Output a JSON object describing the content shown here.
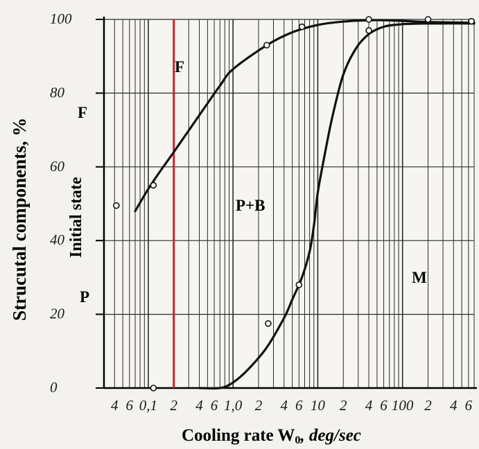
{
  "chart_data": {
    "type": "line",
    "xlabel_main": "Cooling rate W",
    "xlabel_sub": "0",
    "xlabel_unit": ", deg/sec",
    "ylabel": "Strucutal components, %",
    "ylim": [
      0,
      100
    ],
    "xscale": "log",
    "xlim": [
      0.03,
      700
    ],
    "y_ticks": [
      {
        "value": 0,
        "label": "0"
      },
      {
        "value": 20,
        "label": "20"
      },
      {
        "value": 40,
        "label": "40"
      },
      {
        "value": 60,
        "label": "60"
      },
      {
        "value": 80,
        "label": "80"
      },
      {
        "value": 100,
        "label": "100"
      }
    ],
    "x_ticks": [
      {
        "value": 0.04,
        "label": "4"
      },
      {
        "value": 0.06,
        "label": "6"
      },
      {
        "value": 0.1,
        "label": "0,1"
      },
      {
        "value": 0.2,
        "label": "2"
      },
      {
        "value": 0.4,
        "label": "4"
      },
      {
        "value": 0.6,
        "label": "6"
      },
      {
        "value": 1.0,
        "label": "1,0"
      },
      {
        "value": 2,
        "label": "2"
      },
      {
        "value": 4,
        "label": "4"
      },
      {
        "value": 6,
        "label": "6"
      },
      {
        "value": 10,
        "label": "10"
      },
      {
        "value": 20,
        "label": "2"
      },
      {
        "value": 40,
        "label": "4"
      },
      {
        "value": 60,
        "label": "6"
      },
      {
        "value": 100,
        "label": "100"
      },
      {
        "value": 200,
        "label": "2"
      },
      {
        "value": 400,
        "label": "4"
      },
      {
        "value": 600,
        "label": "6"
      }
    ],
    "series": [
      {
        "color": "#111111",
        "points": [
          [
            0.07,
            48
          ],
          [
            0.1,
            54
          ],
          [
            0.14,
            59
          ],
          [
            0.2,
            64
          ],
          [
            0.4,
            74
          ],
          [
            0.7,
            82
          ],
          [
            1.0,
            86.5
          ],
          [
            2.5,
            93
          ],
          [
            5,
            96.5
          ],
          [
            10,
            98.5
          ],
          [
            20,
            99.4
          ],
          [
            45,
            99.8
          ],
          [
            100,
            99.6
          ],
          [
            200,
            99.3
          ],
          [
            700,
            99.1
          ]
        ]
      },
      {
        "color": "#111111",
        "points": [
          [
            0.4,
            0
          ],
          [
            0.7,
            0
          ],
          [
            1.0,
            1.5
          ],
          [
            1.5,
            5
          ],
          [
            2.5,
            11
          ],
          [
            4,
            19
          ],
          [
            5,
            24
          ],
          [
            6.5,
            30
          ],
          [
            8,
            37
          ],
          [
            9,
            44
          ],
          [
            10,
            53
          ],
          [
            12,
            63
          ],
          [
            15,
            74
          ],
          [
            20,
            85
          ],
          [
            28,
            92
          ],
          [
            40,
            96
          ],
          [
            60,
            98
          ],
          [
            100,
            98.7
          ],
          [
            200,
            98.9
          ],
          [
            700,
            98.9
          ]
        ]
      }
    ],
    "markers": [
      {
        "x": 0.115,
        "y": 55
      },
      {
        "x": 2.5,
        "y": 93
      },
      {
        "x": 6.5,
        "y": 98
      },
      {
        "x": 40,
        "y": 100
      },
      {
        "x": 200,
        "y": 100
      },
      {
        "x": 650,
        "y": 99.5
      },
      {
        "x": 40,
        "y": 97
      },
      {
        "x": 6.0,
        "y": 28
      },
      {
        "x": 2.6,
        "y": 17.5
      },
      {
        "x": 0.115,
        "y": 0
      },
      {
        "x": 0.042,
        "y": 49.5
      }
    ],
    "vline": {
      "x": 0.2,
      "color": "#d11f26"
    },
    "regions": [
      "F",
      "F",
      "P+B",
      "P",
      "M"
    ],
    "initial_state_label": "Initial state"
  }
}
